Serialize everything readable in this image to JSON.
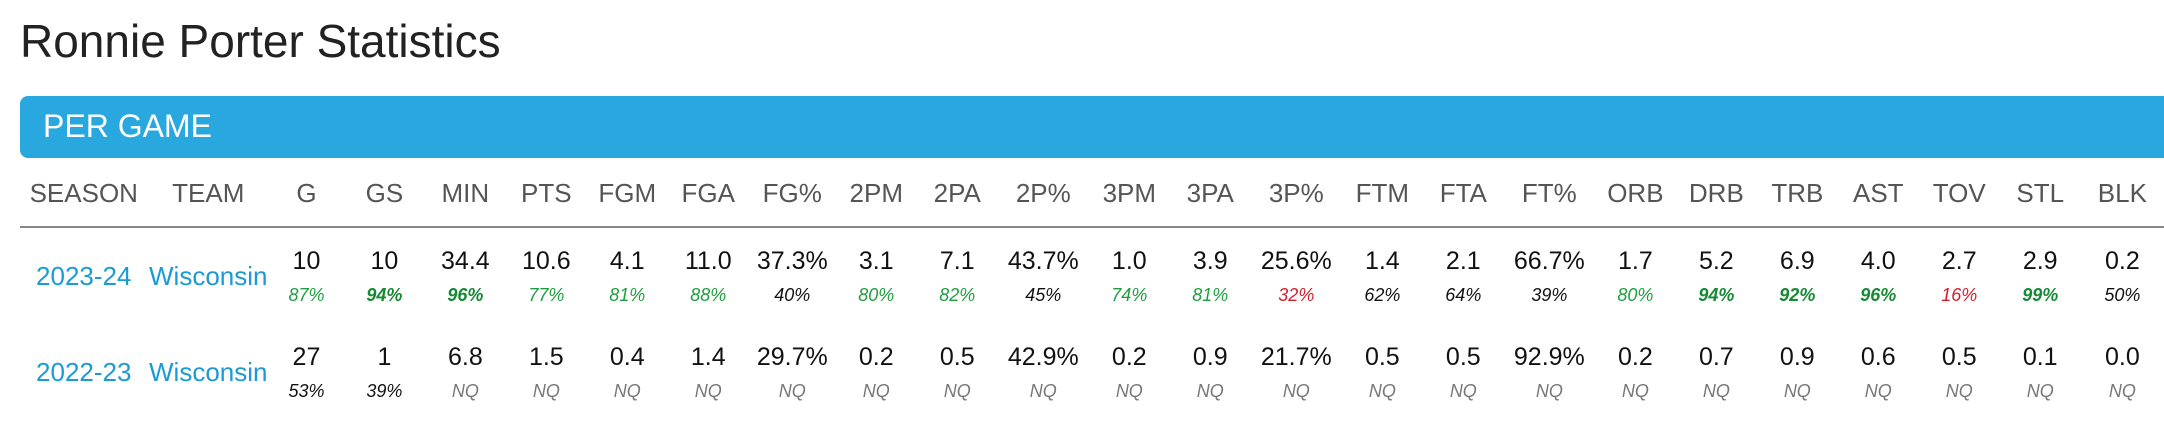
{
  "page": {
    "title": "Ronnie Porter Statistics"
  },
  "section": {
    "title": "PER GAME"
  },
  "table": {
    "headers": [
      "SEASON",
      "TEAM",
      "G",
      "GS",
      "MIN",
      "PTS",
      "FGM",
      "FGA",
      "FG%",
      "2PM",
      "2PA",
      "2P%",
      "3PM",
      "3PA",
      "3P%",
      "FTM",
      "FTA",
      "FT%",
      "ORB",
      "DRB",
      "TRB",
      "AST",
      "TOV",
      "STL",
      "BLK"
    ],
    "rows": [
      {
        "season": "2023-24",
        "team": "Wisconsin",
        "values": [
          "10",
          "10",
          "34.4",
          "10.6",
          "4.1",
          "11.0",
          "37.3%",
          "3.1",
          "7.1",
          "43.7%",
          "1.0",
          "3.9",
          "25.6%",
          "1.4",
          "2.1",
          "66.7%",
          "1.7",
          "5.2",
          "6.9",
          "4.0",
          "2.7",
          "2.9",
          "0.2"
        ],
        "percentiles": [
          "87%",
          "94%",
          "96%",
          "77%",
          "81%",
          "88%",
          "40%",
          "80%",
          "82%",
          "45%",
          "74%",
          "81%",
          "32%",
          "62%",
          "64%",
          "39%",
          "80%",
          "94%",
          "92%",
          "96%",
          "16%",
          "99%",
          "50%"
        ],
        "percentile_styles": [
          "green",
          "green bold",
          "green bold",
          "green",
          "green",
          "green",
          "black",
          "green",
          "green",
          "black",
          "green",
          "green",
          "red",
          "black",
          "black",
          "black",
          "green",
          "green bold",
          "green bold",
          "green bold",
          "red",
          "green bold",
          "black"
        ]
      },
      {
        "season": "2022-23",
        "team": "Wisconsin",
        "values": [
          "27",
          "1",
          "6.8",
          "1.5",
          "0.4",
          "1.4",
          "29.7%",
          "0.2",
          "0.5",
          "42.9%",
          "0.2",
          "0.9",
          "21.7%",
          "0.5",
          "0.5",
          "92.9%",
          "0.2",
          "0.7",
          "0.9",
          "0.6",
          "0.5",
          "0.1",
          "0.0"
        ],
        "percentiles": [
          "53%",
          "39%",
          "NQ",
          "NQ",
          "NQ",
          "NQ",
          "NQ",
          "NQ",
          "NQ",
          "NQ",
          "NQ",
          "NQ",
          "NQ",
          "NQ",
          "NQ",
          "NQ",
          "NQ",
          "NQ",
          "NQ",
          "NQ",
          "NQ",
          "NQ",
          "NQ"
        ],
        "percentile_styles": [
          "black",
          "black",
          "nq",
          "nq",
          "nq",
          "nq",
          "nq",
          "nq",
          "nq",
          "nq",
          "nq",
          "nq",
          "nq",
          "nq",
          "nq",
          "nq",
          "nq",
          "nq",
          "nq",
          "nq",
          "nq",
          "nq",
          "nq"
        ]
      }
    ]
  },
  "colors": {
    "accent": "#29a8e0",
    "link": "#1a9ad6",
    "percentile_high": "#1e9e3e",
    "percentile_low": "#d0202e",
    "not_qualified": "#777777"
  }
}
